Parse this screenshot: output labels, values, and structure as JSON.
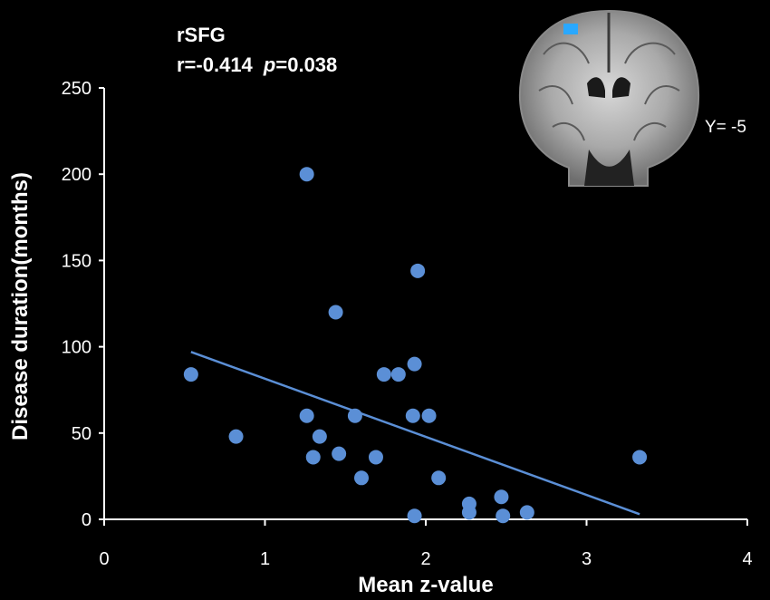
{
  "chart_data": {
    "type": "scatter",
    "title": "rSFG",
    "stats": {
      "r_label": "r=-0.414",
      "p_symbol": "p",
      "p_value": "=0.038"
    },
    "xlabel": "Mean z-value",
    "ylabel": "Disease duration(months)",
    "xlim": [
      0,
      4
    ],
    "ylim": [
      0,
      250
    ],
    "xticks": [
      0,
      1,
      2,
      3,
      4
    ],
    "yticks": [
      0,
      50,
      100,
      150,
      200,
      250
    ],
    "marker_color": "#5b8fd6",
    "line_color": "#5b8fd6",
    "points": [
      {
        "x": 0.54,
        "y": 84
      },
      {
        "x": 0.82,
        "y": 48
      },
      {
        "x": 1.26,
        "y": 200
      },
      {
        "x": 1.26,
        "y": 60
      },
      {
        "x": 1.3,
        "y": 36
      },
      {
        "x": 1.34,
        "y": 48
      },
      {
        "x": 1.44,
        "y": 120
      },
      {
        "x": 1.46,
        "y": 38
      },
      {
        "x": 1.56,
        "y": 60
      },
      {
        "x": 1.6,
        "y": 24
      },
      {
        "x": 1.69,
        "y": 36
      },
      {
        "x": 1.74,
        "y": 84
      },
      {
        "x": 1.83,
        "y": 84
      },
      {
        "x": 1.93,
        "y": 90
      },
      {
        "x": 1.92,
        "y": 60
      },
      {
        "x": 1.95,
        "y": 144
      },
      {
        "x": 1.93,
        "y": 2
      },
      {
        "x": 2.02,
        "y": 60
      },
      {
        "x": 2.08,
        "y": 24
      },
      {
        "x": 2.27,
        "y": 9
      },
      {
        "x": 2.27,
        "y": 4
      },
      {
        "x": 2.47,
        "y": 13
      },
      {
        "x": 2.48,
        "y": 2
      },
      {
        "x": 2.63,
        "y": 4
      },
      {
        "x": 3.33,
        "y": 36
      }
    ],
    "trend_line": {
      "x": [
        0.54,
        3.33
      ],
      "y": [
        97,
        3
      ]
    }
  },
  "inset": {
    "slice_label": "Y= -5",
    "highlight_color": "#2aa8ff"
  }
}
